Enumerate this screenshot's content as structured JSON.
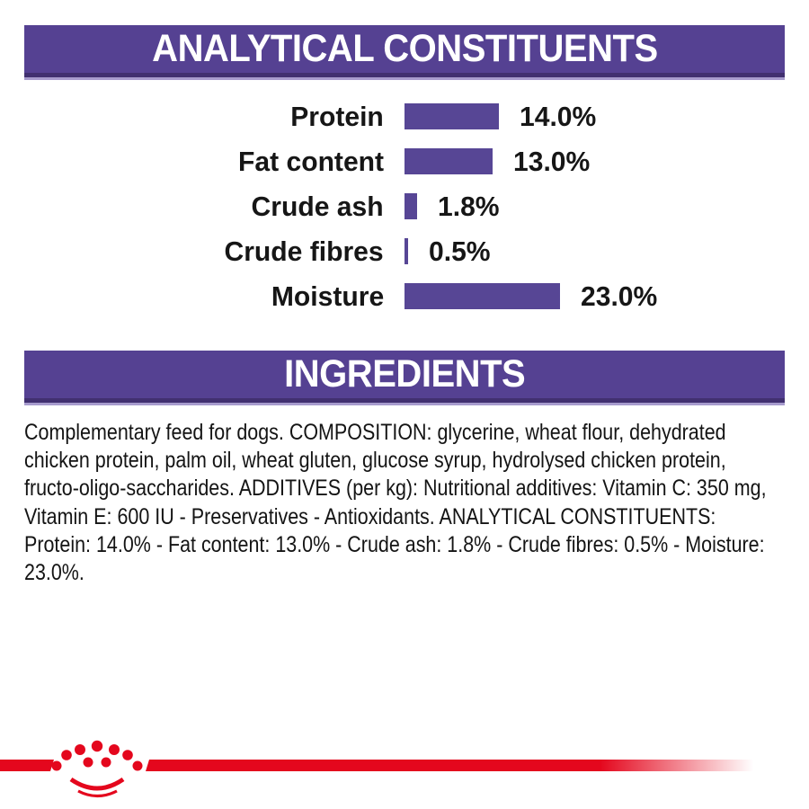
{
  "colors": {
    "purple": "#554192",
    "purple-dark": "#413070",
    "purple-light": "#a79bcd",
    "bar": "#574695",
    "red": "#e4071d",
    "ink": "#161616",
    "bg": "#ffffff"
  },
  "analytical": {
    "title": "ANALYTICAL CONSTITUENTS"
  },
  "chart_data": {
    "type": "bar",
    "orientation": "horizontal",
    "title": "ANALYTICAL CONSTITUENTS",
    "categories": [
      "Protein",
      "Fat content",
      "Crude ash",
      "Crude fibres",
      "Moisture"
    ],
    "values": [
      14.0,
      13.0,
      1.8,
      0.5,
      23.0
    ],
    "value_labels": [
      "14.0%",
      "13.0%",
      "1.8%",
      "0.5%",
      "23.0%"
    ],
    "unit": "%",
    "xlim": [
      0,
      25
    ],
    "bar_color": "#574695",
    "grid": false,
    "legend": false
  },
  "ingredients": {
    "title": "INGREDIENTS",
    "body": "Complementary feed for dogs. COMPOSITION: glycerine, wheat flour, dehydrated chicken protein, palm oil, wheat gluten, glucose syrup, hydrolysed chicken protein, fructo-oligo-saccharides. ADDITIVES (per kg): Nutritional additives: Vitamin C: 350 mg, Vitamin E: 600 IU - Preservatives - Antioxidants. ANALYTICAL CONSTITUENTS: Protein: 14.0% - Fat content: 13.0% - Crude ash: 1.8% - Crude fibres: 0.5% - Moisture: 23.0%."
  },
  "footer": {
    "logo": "royal-canin-crown-logo"
  }
}
